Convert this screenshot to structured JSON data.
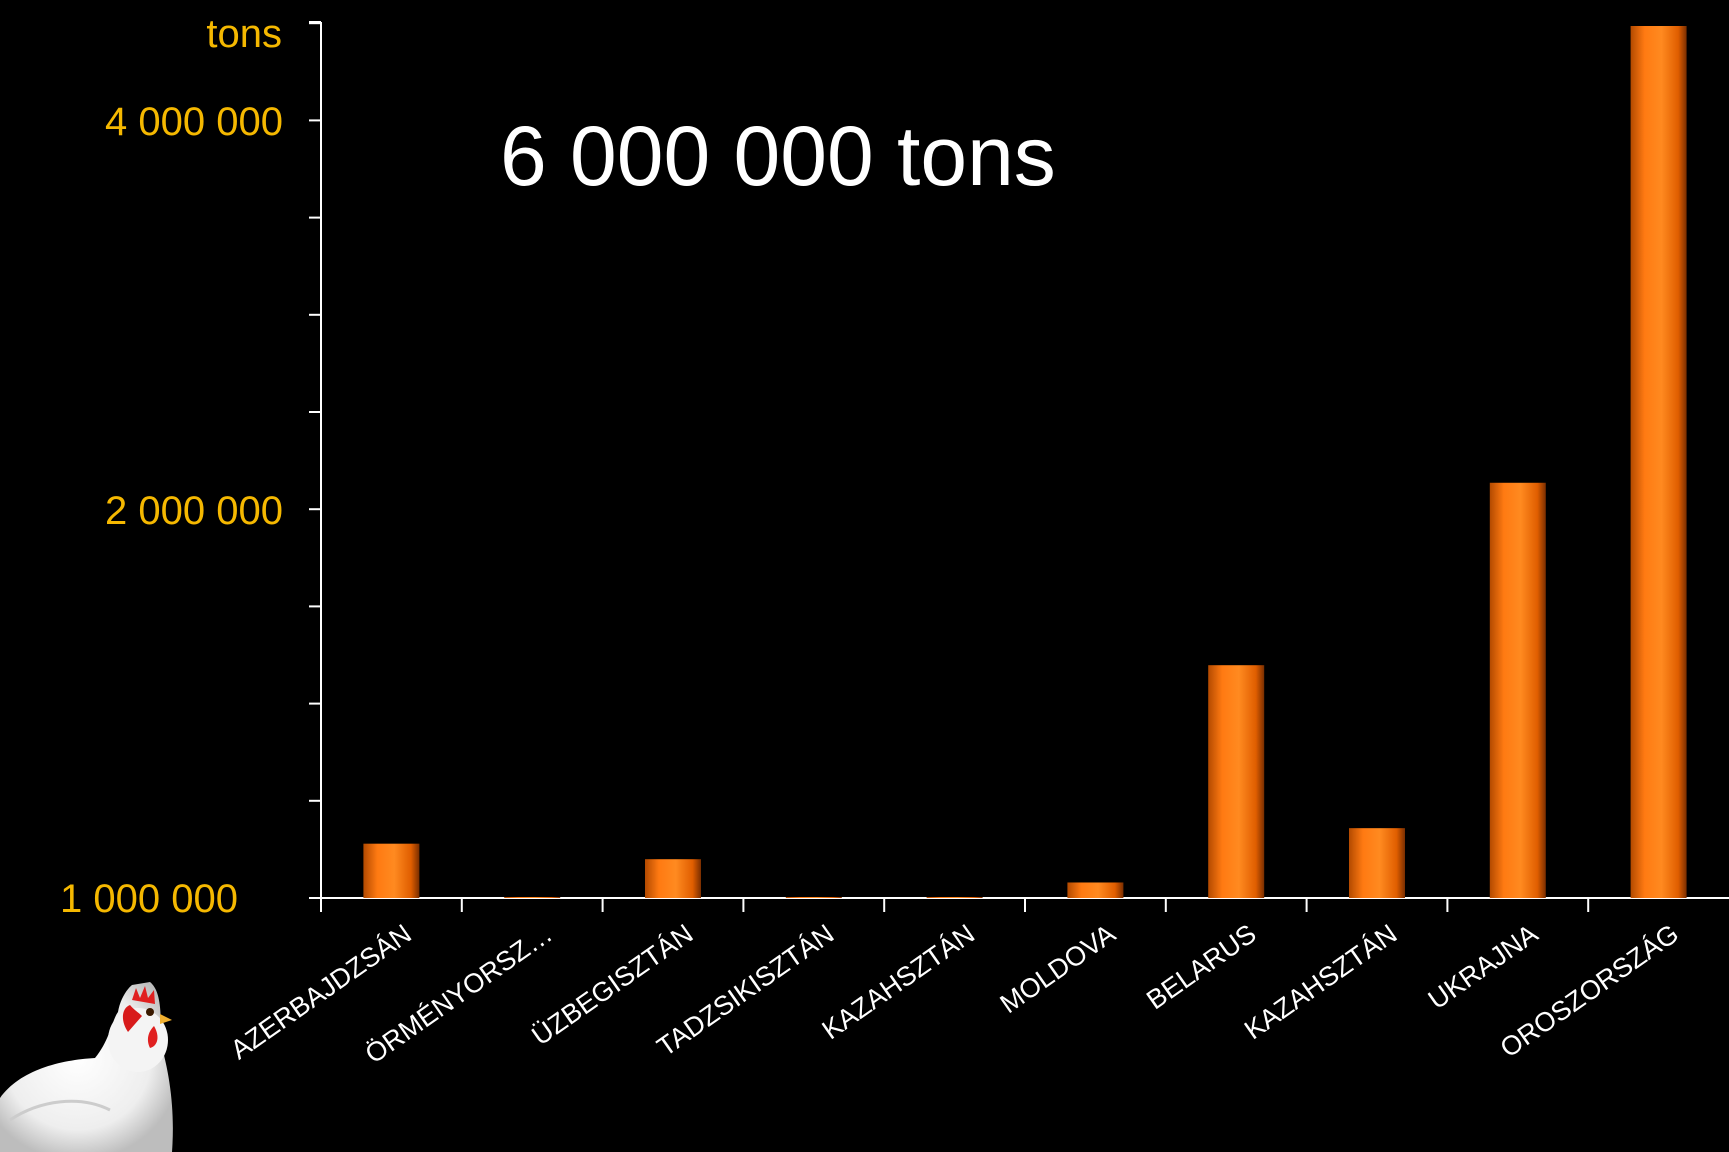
{
  "chart_data": {
    "type": "bar",
    "title": "6 000 000 tons",
    "ylabel": "tons",
    "ylim": [
      1000000,
      5500000
    ],
    "yticks": [
      {
        "value": 1000000,
        "label": "1 000 000"
      },
      {
        "value": 2000000,
        "label": "2 000 000"
      },
      {
        "value": 4000000,
        "label": "4 000 000"
      }
    ],
    "categories": [
      "AZERBAJDZSÁN",
      "ÖRMÉNYORSZ…",
      "ÜZBEGISZTÁN",
      "TADZSIKISZTÁN",
      "KAZAHSZTÁN",
      "MOLDOVA",
      "BELARUS",
      "KAZAHSZTÁN",
      "UKRAJNA",
      "OROSZORSZÁG"
    ],
    "values": [
      1140000,
      1000000,
      1100000,
      1000000,
      1000000,
      1040000,
      1600000,
      1180000,
      2140000,
      5500000
    ],
    "grid": false,
    "colors": {
      "bar": "#ff7a12",
      "axis_labels": "#f5b800",
      "title": "#ffffff",
      "background": "#000000"
    }
  },
  "decoration": {
    "mascot": "white-chicken"
  }
}
